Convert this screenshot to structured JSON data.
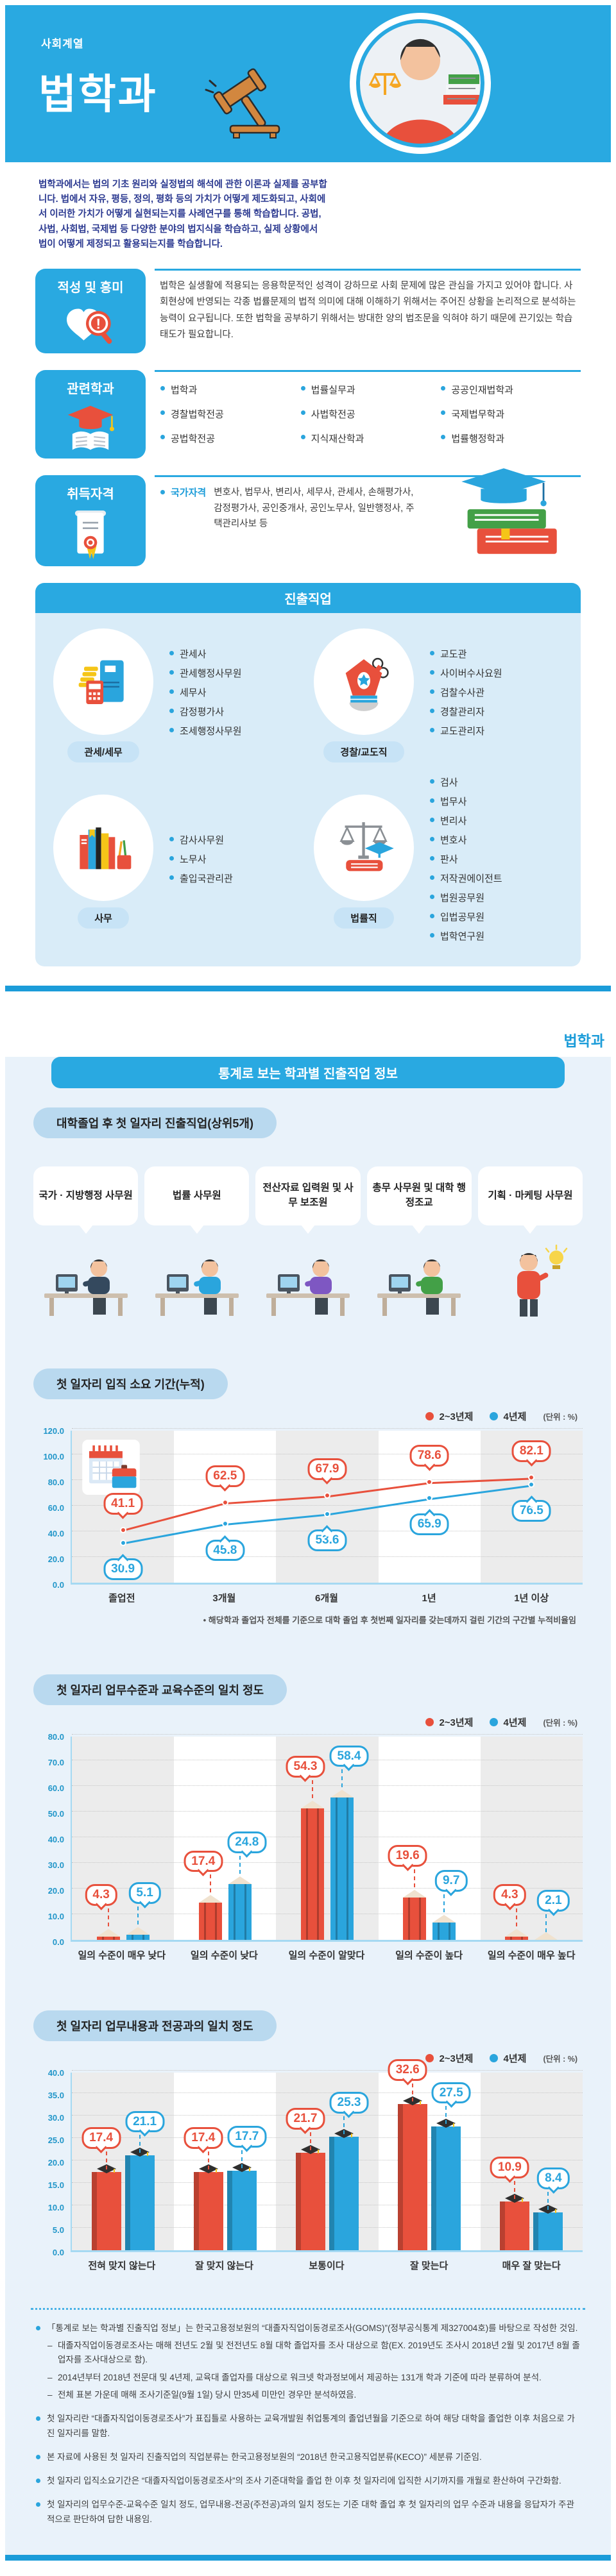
{
  "page1": {
    "category": "사회계열",
    "title": "법학과",
    "intro": "법학과에서는 법의 기초 원리와 실정법의 해석에 관한 이론과 실제를 공부합니다. 법에서 자유, 평등, 정의, 평화 등의 가치가 어떻게 제도화되고, 사회에서 이러한 가치가 어떻게 실현되는지를 사례연구를 통해 학습합니다. 공법, 사법, 사회법, 국제법 등 다양한 분야의 법지식을 학습하고, 실제 상황에서 법이 어떻게 제정되고 활용되는지를 학습합니다.",
    "aptitude": {
      "label": "적성 및 흥미",
      "icon": "heart-magnifier-icon",
      "text": "법학은 실생활에 적용되는 응용학문적인 성격이 강하므로 사회 문제에 많은 관심을 가지고 있어야 합니다. 사회현상에 반영되는 각종 법률문제의 법적 의미에 대해 이해하기 위해서는 주어진 상황을 논리적으로 분석하는 능력이 요구됩니다. 또한 법학을 공부하기 위해서는 방대한 양의 법조문을 익혀야 하기 때문에 끈기있는 학습태도가 필요합니다."
    },
    "related": {
      "label": "관련학과",
      "icon": "graduation-book-icon",
      "columns": [
        [
          "법학과",
          "경찰법학전공",
          "공법학전공"
        ],
        [
          "법률실무과",
          "사법학전공",
          "지식재산학과"
        ],
        [
          "공공인재법학과",
          "국제법무학과",
          "법률행정학과"
        ]
      ]
    },
    "certificate": {
      "label": "취득자격",
      "icon": "certificate-icon",
      "type": "국가자격",
      "text": "변호사, 법무사, 변리사, 세무사, 관세사, 손해평가사, 감정평가사, 공인중개사, 공인노무사, 일반행정사, 주택관리사보 등"
    },
    "careers": {
      "title": "진출직업",
      "groups": [
        {
          "label": "관세/세무",
          "icon": "calculator-coins-icon",
          "items": [
            "관세사",
            "관세행정사무원",
            "세무사",
            "감정평가사",
            "조세행정사무원"
          ]
        },
        {
          "label": "경찰/교도직",
          "icon": "police-hat-icon",
          "items": [
            "교도관",
            "사이버수사요원",
            "검찰수사관",
            "경찰관리자",
            "교도관리자"
          ]
        },
        {
          "label": "사무",
          "icon": "books-pencils-icon",
          "items": [
            "감사사무원",
            "노무사",
            "출입국관리관"
          ]
        },
        {
          "label": "법률직",
          "icon": "scales-gradcap-icon",
          "items": [
            "검사",
            "법무사",
            "변리사",
            "변호사",
            "판사",
            "저작권에이전트",
            "법원공무원",
            "입법공무원",
            "법학연구원"
          ]
        }
      ]
    }
  },
  "page2": {
    "dept_tag": "법학과",
    "header": "통계로 보는 학과별 진출직업 정보",
    "first_jobs": {
      "title": "대학졸업 후 첫 일자리 진출직업(상위5개)",
      "items": [
        "국가 · 지방행정 사무원",
        "법률 사무원",
        "전산자료 입력원 및 사무 보조원",
        "총무 사무원 및 대학 행정조교",
        "기획 · 마케팅 사무원"
      ]
    },
    "notes": [
      {
        "type": "bullet",
        "text": "「통계로 보는 학과별 진출직업 정보」는 한국고용정보원의 “대졸자직업이동경로조사(GOMS)”(정부공식통계 제327004호)를 바탕으로 작성한 것임."
      },
      {
        "type": "dash",
        "text": "대졸자직업이동경로조사는 매해 전년도 2월 및 전전년도 8월 대학 졸업자를 조사 대상으로 함(EX. 2019년도 조사시 2018년 2월 및 2017년 8월 졸업자를 조사대상으로 함)."
      },
      {
        "type": "dash",
        "text": "2014년부터 2018년 전문대 및 4년제, 교육대 졸업자를 대상으로 워크넷 학과정보에서 제공하는 131개 학과 기준에 따라 분류하여 분석."
      },
      {
        "type": "dash",
        "text": "전체 표본 가운데 매해 조사기준일(9월 1일) 당시 만35세 미만인 경우만 분석하였음."
      },
      {
        "type": "bullet",
        "text": "첫 일자리란 “대졸자직업이동경로조사”가 표집틀로 사용하는 교육개발원 취업통계의 졸업년월을 기준으로 하여 해당 대학을 졸업한 이후 처음으로 가진 일자리를 말함."
      },
      {
        "type": "bullet",
        "text": "본 자료에 사용된 첫 일자리 진출직업의 직업분류는 한국고용정보원의 “2018년 한국고용직업분류(KECO)” 세분류 기준임."
      },
      {
        "type": "bullet",
        "text": "첫 일자리 입직소요기간은 “대졸자직업이동경로조사”의 조사 기준대학을 졸업 한 이후 첫 일자리에 입직한 시기까지를 개월로 환산하여 구간화함."
      },
      {
        "type": "bullet",
        "text": "첫 일자리의 업무수준-교육수준 일치 정도, 업무내용-전공(주전공)과의 일치 정도는 기준 대학 졸업 후 첫 일자리의 업무 수준과 내용을 응답자가 주관적으로 판단하여 답한 내용임."
      }
    ]
  },
  "chart_data": [
    {
      "type": "line",
      "title": "첫 일자리 입직 소요 기간(누적)",
      "unit": "(단위 : %)",
      "legend_position": "top-right",
      "grid": true,
      "categories": [
        "졸업전",
        "3개월",
        "6개월",
        "1년",
        "1년 이상"
      ],
      "series": [
        {
          "name": "2~3년제",
          "color": "#e8503c",
          "values": [
            41.1,
            62.5,
            67.9,
            78.6,
            82.1
          ]
        },
        {
          "name": "4년제",
          "color": "#2aa5dd",
          "values": [
            30.9,
            45.8,
            53.6,
            65.9,
            76.5
          ]
        }
      ],
      "ylim": [
        0,
        120
      ],
      "ystep": 20,
      "footnote": "• 해당학과 졸업자 전체를 기준으로 대학 졸업 후 첫번째 일자리를 갖는데까지 걸린 기간의 구간별 누적비율임"
    },
    {
      "type": "bar-pencil",
      "title": "첫 일자리 업무수준과 교육수준의 일치 정도",
      "unit": "(단위 : %)",
      "legend_position": "top-right",
      "grid": true,
      "categories": [
        "일의 수준이 매우 낮다",
        "일의 수준이 낮다",
        "일의 수준이 알맞다",
        "일의 수준이 높다",
        "일의 수준이 매우 높다"
      ],
      "series": [
        {
          "name": "2~3년제",
          "color": "#e8503c",
          "values": [
            4.3,
            17.4,
            54.3,
            19.6,
            4.3
          ]
        },
        {
          "name": "4년제",
          "color": "#2aa5dd",
          "values": [
            5.1,
            24.8,
            58.4,
            9.7,
            2.1
          ]
        }
      ],
      "ylim": [
        0,
        80
      ],
      "ystep": 10
    },
    {
      "type": "bar-cap",
      "title": "첫 일자리 업무내용과 전공과의 일치 정도",
      "unit": "(단위 : %)",
      "legend_position": "top-right",
      "grid": true,
      "categories": [
        "전혀 맞지 않는다",
        "잘 맞지 않는다",
        "보통이다",
        "잘 맞는다",
        "매우 잘 맞는다"
      ],
      "series": [
        {
          "name": "2~3년제",
          "color": "#e8503c",
          "values": [
            17.4,
            17.4,
            21.7,
            32.6,
            10.9
          ]
        },
        {
          "name": "4년제",
          "color": "#2aa5dd",
          "values": [
            21.1,
            17.7,
            25.3,
            27.5,
            8.4
          ]
        }
      ],
      "ylim": [
        0,
        40
      ],
      "ystep": 5
    }
  ]
}
